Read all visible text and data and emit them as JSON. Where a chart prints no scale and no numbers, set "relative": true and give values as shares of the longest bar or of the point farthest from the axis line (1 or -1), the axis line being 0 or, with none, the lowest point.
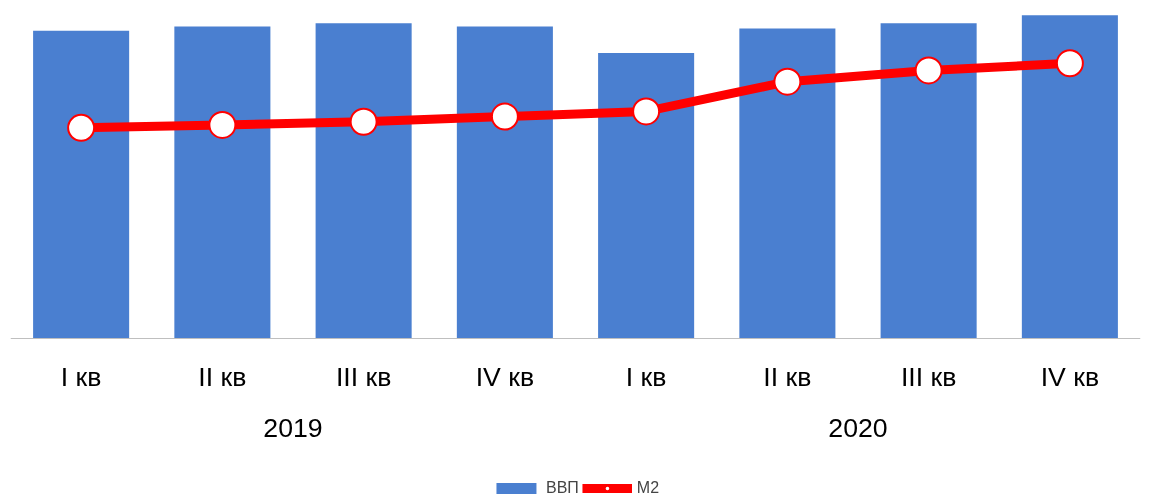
{
  "chart_data": {
    "type": "bar",
    "relative": true,
    "categories": [
      "I кв",
      "II кв",
      "III кв",
      "IV кв",
      "I кв",
      "II кв",
      "III кв",
      "IV кв"
    ],
    "annotations": [
      "2019",
      "2020"
    ],
    "series": [
      {
        "name": "ВВП",
        "color": "#4a7fd0",
        "values": [
          0.952,
          0.965,
          0.975,
          0.965,
          0.883,
          0.959,
          0.975,
          1
        ]
      },
      {
        "name": "М2",
        "type": "line",
        "color": "#ff0000",
        "marker": "circle",
        "values": [
          0.651,
          0.66,
          0.67,
          0.686,
          0.702,
          0.794,
          0.829,
          0.851
        ]
      }
    ],
    "legend": "bottom"
  }
}
